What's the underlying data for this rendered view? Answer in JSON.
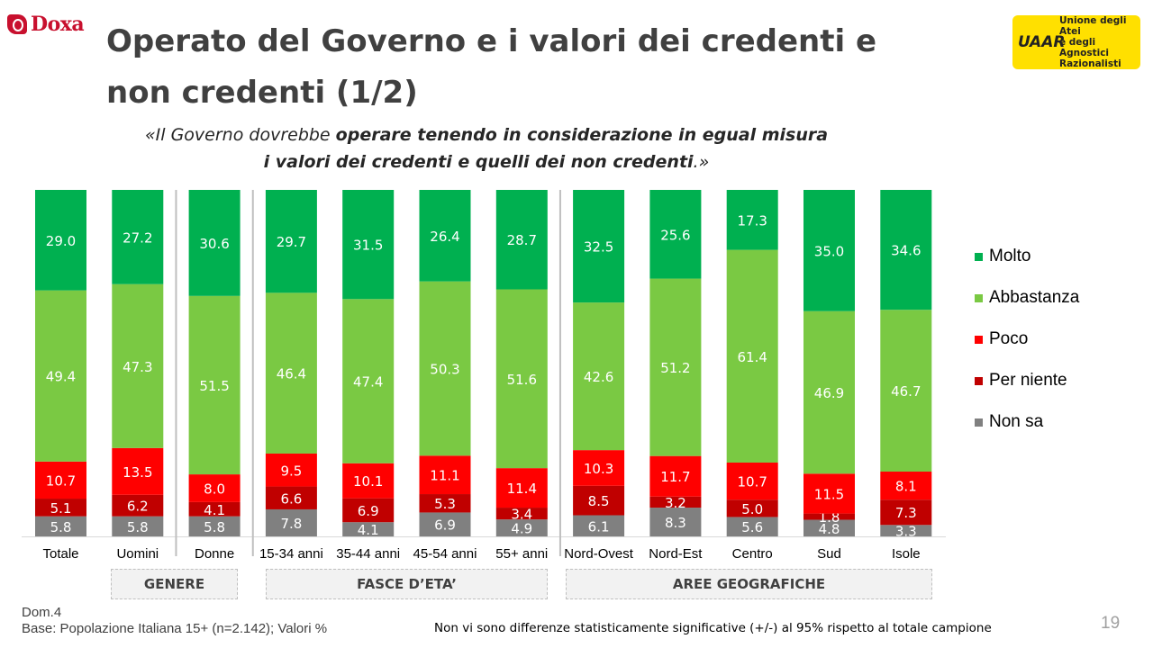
{
  "brand": {
    "name": "Doxa"
  },
  "header": {
    "title": "Operato del Governo e i valori dei credenti e non credenti (1/2)"
  },
  "subtitle": {
    "open": "«Il Governo dovrebbe ",
    "bold1": "operare tenendo in considerazione in egual misura",
    "bold2": "i valori dei credenti e quelli dei non credenti",
    "close": ".»"
  },
  "logo": {
    "mark": "UAAR",
    "line1": "Unione degli Atei",
    "line2": "e degli Agnostici",
    "line3": "Razionalisti"
  },
  "groups": {
    "genere": "GENERE",
    "eta": "FASCE D’ETA’",
    "aree": "AREE GEOGRAFICHE"
  },
  "footer": {
    "dom": "Dom.4",
    "base": "Base: Popolazione Italiana 15+ (n=2.142); Valori %",
    "note": "Non vi sono differenze statisticamente significative (+/-) al 95% rispetto al totale campione",
    "page": "19"
  },
  "chart_data": {
    "type": "bar",
    "stacked": true,
    "categories": [
      "Totale",
      "Uomini",
      "Donne",
      "15-34 anni",
      "35-44 anni",
      "45-54 anni",
      "55+ anni",
      "Nord-Ovest",
      "Nord-Est",
      "Centro",
      "Sud",
      "Isole"
    ],
    "series": [
      {
        "name": "Non sa",
        "color": "#808080",
        "values": [
          5.8,
          5.8,
          5.8,
          7.8,
          4.1,
          6.9,
          4.9,
          6.1,
          8.3,
          5.6,
          4.8,
          3.3
        ]
      },
      {
        "name": "Per niente",
        "color": "#c00000",
        "values": [
          5.1,
          6.2,
          4.1,
          6.6,
          6.9,
          5.3,
          3.4,
          8.5,
          3.2,
          5.0,
          1.8,
          7.3
        ]
      },
      {
        "name": "Poco",
        "color": "#ff0000",
        "values": [
          10.7,
          13.5,
          8.0,
          9.5,
          10.1,
          11.1,
          11.4,
          10.3,
          11.7,
          10.7,
          11.5,
          8.1
        ]
      },
      {
        "name": "Abbastanza",
        "color": "#7ac943",
        "values": [
          49.4,
          47.3,
          51.5,
          46.4,
          47.4,
          50.3,
          51.6,
          42.6,
          51.2,
          61.4,
          46.9,
          46.7
        ]
      },
      {
        "name": "Molto",
        "color": "#00b050",
        "values": [
          29.0,
          27.2,
          30.6,
          29.7,
          31.5,
          26.4,
          28.7,
          32.5,
          25.6,
          17.3,
          35.0,
          34.6
        ]
      }
    ],
    "legend_order": [
      "Molto",
      "Abbastanza",
      "Poco",
      "Per niente",
      "Non sa"
    ],
    "legend_placement": "right",
    "ylim": [
      0,
      100
    ],
    "grid": false
  }
}
